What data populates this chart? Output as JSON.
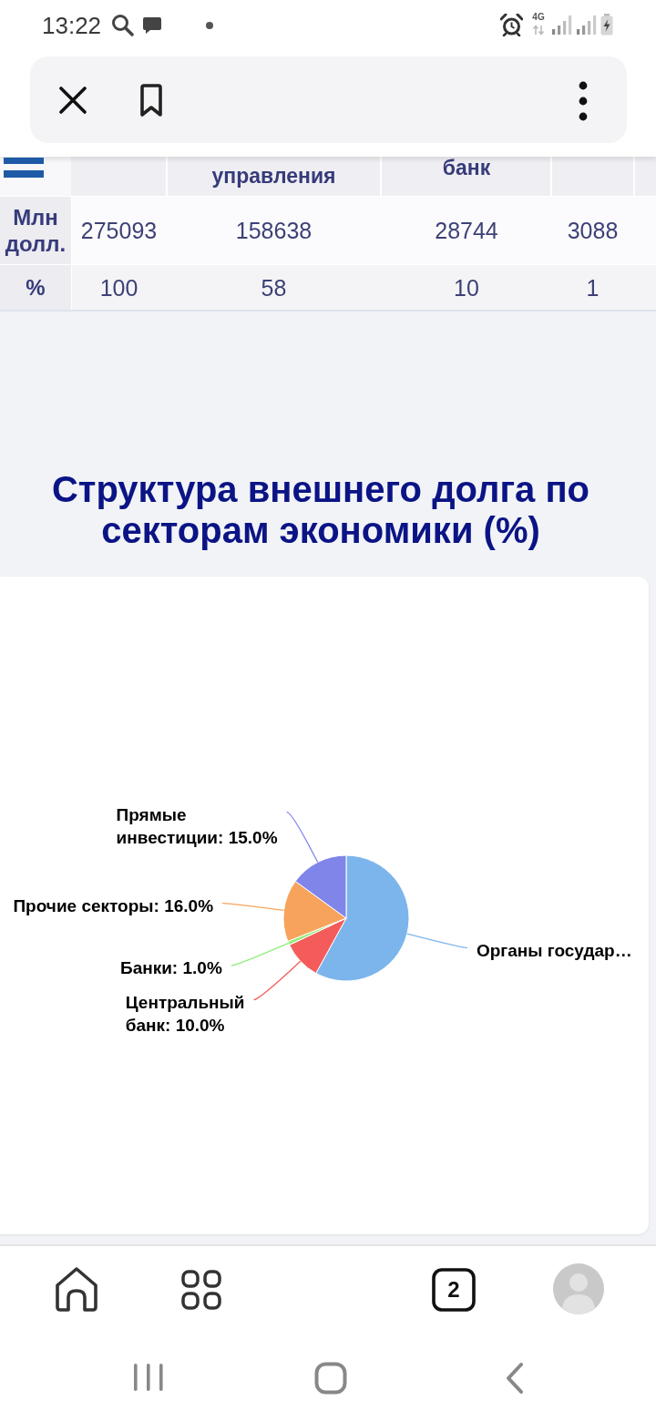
{
  "chart_data": [
    {
      "type": "other",
      "annotations": [
        "13:22",
        "4G",
        "управления",
        "банк",
        "Млн долл.",
        "275093",
        "158638",
        "28744",
        "3088",
        "%",
        "100",
        "58",
        "10",
        "1"
      ]
    },
    {
      "type": "pie",
      "title": "Структура внешнего долга по секторам экономики (%)",
      "categories": [
        "Органы государ…",
        "Центральный банк",
        "Банки",
        "Прочие секторы",
        "Прямые инвестиции"
      ],
      "values": [
        58,
        10,
        1,
        16,
        15
      ],
      "colors": [
        "#7cb5ec",
        "#f45b5b",
        "#90ed7d",
        "#f7a35c",
        "#8085e9"
      ],
      "value_labels": [
        null,
        "10.0%",
        "1.0%",
        "16.0%",
        "15.0%"
      ]
    },
    {
      "type": "other",
      "annotations": [
        "2"
      ]
    }
  ]
}
